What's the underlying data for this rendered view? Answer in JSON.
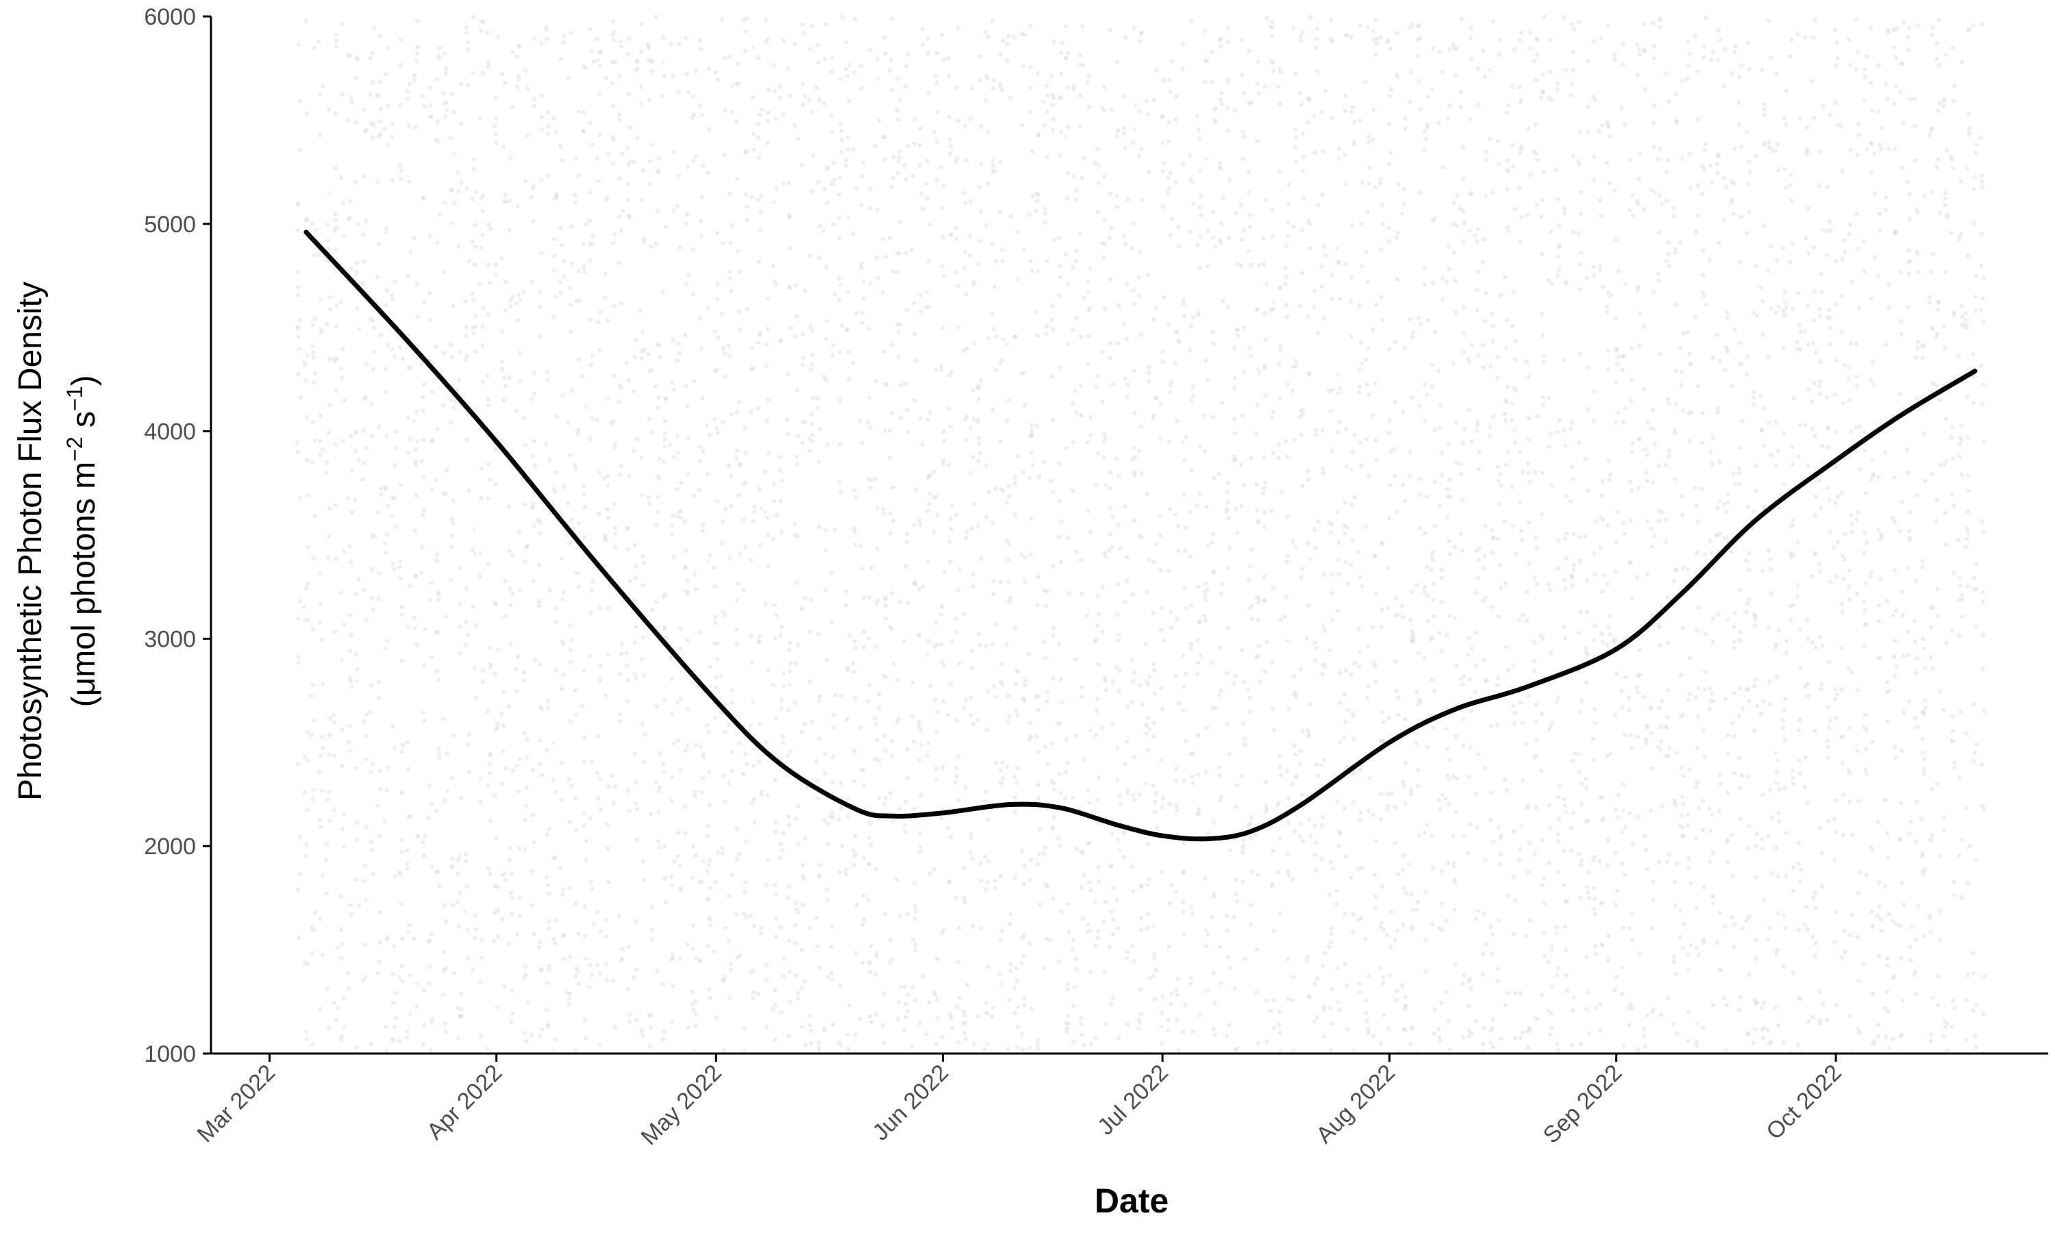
{
  "chart_data": {
    "type": "line",
    "xlabel": "Date",
    "ylabel_line1": "Photosynthetic Photon Flux Density",
    "ylabel_line2_prefix": "(μmol photons m",
    "ylabel_sup1": "−2",
    "ylabel_mid": " s",
    "ylabel_sup2": "−1",
    "ylabel_suffix": ")",
    "ylim": [
      1000,
      6000
    ],
    "xlim": [
      "2022-02-21",
      "2022-10-30"
    ],
    "y_ticks": [
      1000,
      2000,
      3000,
      4000,
      5000,
      6000
    ],
    "x_ticks": [
      {
        "date": "2022-03-01",
        "label": "Mar 2022"
      },
      {
        "date": "2022-04-01",
        "label": "Apr 2022"
      },
      {
        "date": "2022-05-01",
        "label": "May 2022"
      },
      {
        "date": "2022-06-01",
        "label": "Jun 2022"
      },
      {
        "date": "2022-07-01",
        "label": "Jul 2022"
      },
      {
        "date": "2022-08-01",
        "label": "Aug 2022"
      },
      {
        "date": "2022-09-01",
        "label": "Sep 2022"
      },
      {
        "date": "2022-10-01",
        "label": "Oct 2022"
      }
    ],
    "points_date_range": [
      "2022-03-05",
      "2022-10-21"
    ],
    "points_y_range": [
      1000,
      6000
    ],
    "series": [
      {
        "x": [
          "2022-03-06",
          "2022-03-20",
          "2022-04-01",
          "2022-04-15",
          "2022-05-01",
          "2022-05-10",
          "2022-05-20",
          "2022-05-25",
          "2022-06-01",
          "2022-06-10",
          "2022-06-17",
          "2022-06-25",
          "2022-07-01",
          "2022-07-07",
          "2022-07-13",
          "2022-07-20",
          "2022-08-01",
          "2022-08-10",
          "2022-08-20",
          "2022-09-01",
          "2022-09-10",
          "2022-09-20",
          "2022-10-01",
          "2022-10-10",
          "2022-10-20"
        ],
        "y": [
          4960,
          4430,
          3950,
          3350,
          2700,
          2390,
          2180,
          2145,
          2160,
          2200,
          2185,
          2100,
          2050,
          2035,
          2070,
          2200,
          2500,
          2660,
          2770,
          2950,
          3220,
          3570,
          3860,
          4080,
          4290
        ]
      }
    ],
    "grid": false,
    "colors": {
      "line": "#000000",
      "points": "#d9d9d9",
      "axis": "#000000",
      "tick_label": "#4d4d4d"
    }
  }
}
